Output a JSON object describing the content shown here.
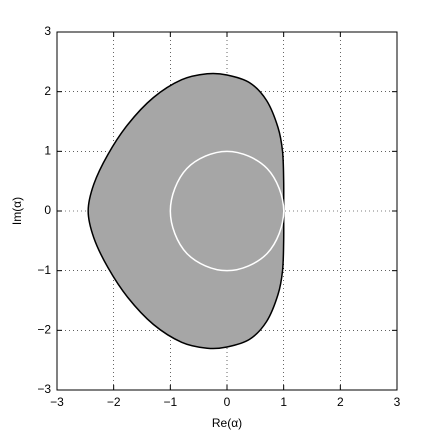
{
  "chart_data": {
    "type": "region",
    "xlabel": "Re(α)",
    "ylabel": "Im(α)",
    "xlim": [
      -3,
      3
    ],
    "ylim": [
      -3,
      3
    ],
    "xticks": [
      {
        "value": -3,
        "label": "−3"
      },
      {
        "value": -2,
        "label": "−2"
      },
      {
        "value": -1,
        "label": "−1"
      },
      0,
      1,
      2,
      3
    ],
    "yticks": [
      {
        "value": -3,
        "label": "−3"
      },
      {
        "value": -2,
        "label": "−2"
      },
      {
        "value": -1,
        "label": "−1"
      },
      0,
      1,
      2,
      3
    ],
    "grid": true,
    "series": [
      {
        "fill": "#a6a6a6",
        "color": "#000000",
        "x": [
          1.0,
          1.0,
          0.98,
          0.9,
          0.7,
          0.4,
          0,
          -0.35,
          -0.8,
          -1.3,
          -1.75,
          -2.1,
          -2.35,
          -2.45,
          -2.35,
          -2.1,
          -1.75,
          -1.3,
          -0.8,
          -0.35,
          0,
          0.4,
          0.7,
          0.9,
          0.98,
          1.0
        ],
        "values": [
          0,
          0.5,
          1.0,
          1.4,
          1.85,
          2.15,
          2.28,
          2.3,
          2.2,
          1.9,
          1.45,
          0.95,
          0.45,
          0,
          -0.45,
          -0.95,
          -1.45,
          -1.9,
          -2.2,
          -2.3,
          -2.28,
          -2.15,
          -1.85,
          -1.4,
          -1.0,
          -0.5
        ]
      },
      {
        "fill": "none",
        "color": "#ffffff",
        "x": [
          1,
          0.92,
          0.71,
          0.38,
          0,
          -0.38,
          -0.71,
          -0.92,
          -1,
          -0.92,
          -0.71,
          -0.38,
          0,
          0.38,
          0.71,
          0.92
        ],
        "values": [
          0,
          0.38,
          0.71,
          0.92,
          1,
          0.92,
          0.71,
          0.38,
          0,
          -0.38,
          -0.71,
          -0.92,
          -1,
          -0.92,
          -0.71,
          -0.38
        ]
      }
    ]
  }
}
